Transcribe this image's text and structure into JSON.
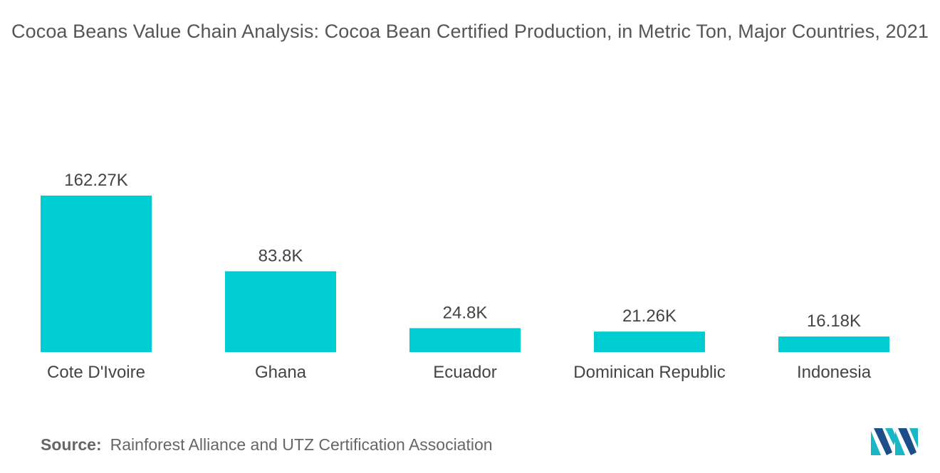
{
  "title": "Cocoa Beans Value Chain Analysis: Cocoa Bean Certified Production, in Metric Ton, Major Countries, 2021",
  "source": {
    "label": "Source:",
    "text": "Rainforest Alliance and UTZ Certification Association"
  },
  "logo": {
    "icon": "mordor-intelligence-logo-icon",
    "colors": [
      "#1c4e8a",
      "#19b6c6"
    ]
  },
  "colors": {
    "bar": "#00cdd1",
    "title": "#555555",
    "label": "#444444"
  },
  "chart_data": {
    "type": "bar",
    "categories": [
      "Cote D'Ivoire",
      "Ghana",
      "Ecuador",
      "Dominican Republic",
      "Indonesia"
    ],
    "values": [
      162270,
      83800,
      24800,
      21260,
      16180
    ],
    "data_labels": [
      "162.27K",
      "83.8K",
      "24.8K",
      "21.26K",
      "16.18K"
    ],
    "title": "Cocoa Beans Value Chain Analysis: Cocoa Bean Certified Production, in Metric Ton, Major Countries, 2021",
    "xlabel": "",
    "ylabel": "",
    "ylim": [
      0,
      162270
    ],
    "grid": false,
    "legend": "none"
  }
}
